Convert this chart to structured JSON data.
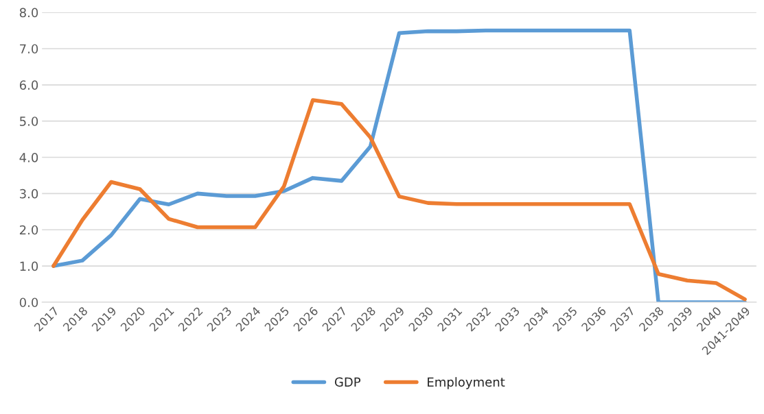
{
  "chart_data": {
    "type": "line",
    "categories": [
      "2017",
      "2018",
      "2019",
      "2020",
      "2021",
      "2022",
      "2023",
      "2024",
      "2025",
      "2026",
      "2027",
      "2028",
      "2029",
      "2030",
      "2031",
      "2032",
      "2033",
      "2034",
      "2035",
      "2036",
      "2037",
      "2038",
      "2039",
      "2040",
      "2041-2049"
    ],
    "series": [
      {
        "name": "GDP",
        "color": "#5b9bd5",
        "values": [
          1.0,
          1.15,
          1.85,
          2.85,
          2.7,
          3.0,
          2.93,
          2.93,
          3.07,
          3.43,
          3.35,
          4.3,
          7.43,
          7.48,
          7.48,
          7.5,
          7.5,
          7.5,
          7.5,
          7.5,
          7.5,
          0.0,
          0.0,
          0.0,
          0.0
        ]
      },
      {
        "name": "Employment",
        "color": "#ed7d31",
        "values": [
          1.0,
          2.27,
          3.32,
          3.12,
          2.3,
          2.07,
          2.07,
          2.07,
          3.2,
          5.58,
          5.47,
          4.55,
          2.92,
          2.74,
          2.71,
          2.71,
          2.71,
          2.71,
          2.71,
          2.71,
          2.71,
          0.78,
          0.6,
          0.53,
          0.08
        ]
      }
    ],
    "ylim": [
      0,
      8
    ],
    "yticks": [
      {
        "value": 0,
        "label": "0.0"
      },
      {
        "value": 1,
        "label": "1.0"
      },
      {
        "value": 2,
        "label": "2.0"
      },
      {
        "value": 3,
        "label": "3.0"
      },
      {
        "value": 4,
        "label": "4.0"
      },
      {
        "value": 5,
        "label": "5.0"
      },
      {
        "value": 6,
        "label": "6.0"
      },
      {
        "value": 7,
        "label": "7.0"
      },
      {
        "value": 8,
        "label": "8.0"
      }
    ],
    "grid": "y",
    "legend": "bottom",
    "marker": "none",
    "line_style": "solid"
  }
}
